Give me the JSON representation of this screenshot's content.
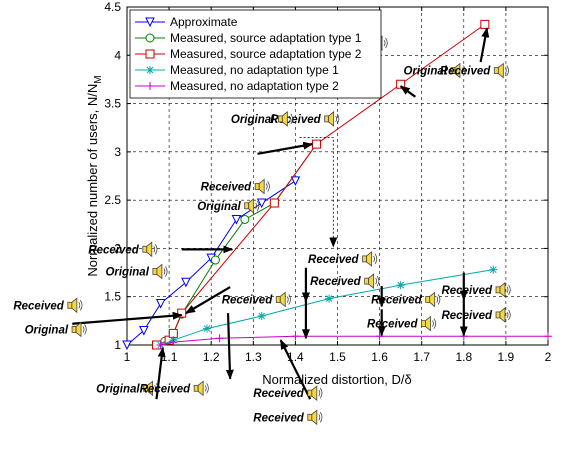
{
  "chart_data": {
    "type": "line",
    "xlabel": "Normalized distortion, D/δ",
    "ylabel": "Normalized number of users, N/N",
    "ylabel_subscript": "M",
    "xlim": [
      1,
      2
    ],
    "ylim": [
      1,
      4.5
    ],
    "x_ticks": [
      "1",
      "1.1",
      "1.2",
      "1.3",
      "1.4",
      "1.5",
      "1.6",
      "1.7",
      "1.8",
      "1.9",
      "2"
    ],
    "y_ticks": [
      "1",
      "1.5",
      "2",
      "2.5",
      "3",
      "3.5",
      "4",
      "4.5"
    ],
    "grid": true,
    "legend_position": "top-left",
    "series": [
      {
        "name": "Approximate",
        "color": "#0000ff",
        "marker": "triangle-down",
        "x": [
          1.0,
          1.04,
          1.08,
          1.14,
          1.2,
          1.26,
          1.32,
          1.4
        ],
        "y": [
          1.0,
          1.15,
          1.43,
          1.65,
          1.9,
          2.3,
          2.47,
          2.7
        ]
      },
      {
        "name": "Measured, source adaptation type 1",
        "color": "#008000",
        "marker": "circle",
        "x": [
          1.07,
          1.09,
          1.11,
          1.13,
          1.21,
          1.28,
          1.35,
          1.45
        ],
        "y": [
          1.0,
          1.04,
          1.12,
          1.32,
          1.88,
          2.3,
          2.47,
          3.08
        ]
      },
      {
        "name": "Measured, source adaptation type 2",
        "color": "#cc0000",
        "marker": "square",
        "x": [
          1.07,
          1.1,
          1.11,
          1.13,
          1.35,
          1.45,
          1.65,
          1.85
        ],
        "y": [
          1.0,
          1.05,
          1.12,
          1.33,
          2.47,
          3.08,
          3.7,
          4.32
        ]
      },
      {
        "name": "Measured, no adaptation type 1",
        "color": "#00aaaa",
        "marker": "asterisk",
        "x": [
          1.08,
          1.11,
          1.19,
          1.32,
          1.48,
          1.65,
          1.87
        ],
        "y": [
          1.0,
          1.05,
          1.17,
          1.3,
          1.48,
          1.62,
          1.78
        ]
      },
      {
        "name": "Measured, no adaptation type 2",
        "color": "#cc00cc",
        "marker": "plus",
        "x": [
          1.08,
          1.11,
          1.22,
          1.4,
          1.6,
          1.8,
          2.0
        ],
        "y": [
          1.0,
          1.03,
          1.07,
          1.09,
          1.09,
          1.09,
          1.09
        ]
      }
    ],
    "annotations": [
      {
        "text": "Received",
        "x": 1.575,
        "y": 4.085
      },
      {
        "text": "Original",
        "x": 1.535,
        "y": 3.915
      },
      {
        "text": "Original",
        "x": 1.76,
        "y": 3.8
      },
      {
        "text": "Received",
        "x": 1.863,
        "y": 3.8
      },
      {
        "text": "Received",
        "x": 1.46,
        "y": 3.3
      },
      {
        "text": "Original",
        "x": 1.35,
        "y": 3.3
      },
      {
        "text": "Received",
        "x": 1.295,
        "y": 2.6
      },
      {
        "text": "Original",
        "x": 1.27,
        "y": 2.4
      },
      {
        "text": "Received",
        "x": 1.028,
        "y": 1.95
      },
      {
        "text": "Original",
        "x": 1.052,
        "y": 1.72
      },
      {
        "text": "Received",
        "x": 1.55,
        "y": 1.85
      },
      {
        "text": "Received",
        "x": 1.555,
        "y": 1.62
      },
      {
        "text": "Received",
        "x": 1.345,
        "y": 1.43
      },
      {
        "text": "Received",
        "x": 1.7,
        "y": 1.43
      },
      {
        "text": "Received",
        "x": 1.867,
        "y": 1.53
      },
      {
        "text": "Received",
        "x": 1.69,
        "y": 1.18
      },
      {
        "text": "Received",
        "x": 1.867,
        "y": 1.27
      },
      {
        "text": "Received",
        "x": 0.85,
        "y": 1.37
      },
      {
        "text": "Original",
        "x": 0.86,
        "y": 1.12
      },
      {
        "text": "Original",
        "x": 1.03,
        "y": 0.51
      },
      {
        "text": "Received",
        "x": 1.15,
        "y": 0.51
      },
      {
        "text": "Received",
        "x": 1.42,
        "y": 0.46
      },
      {
        "text": "Received",
        "x": 1.42,
        "y": 0.21
      }
    ],
    "arrows": [
      {
        "from": [
          1.84,
          3.93
        ],
        "to": [
          1.855,
          4.28
        ]
      },
      {
        "from": [
          1.685,
          3.57
        ],
        "to": [
          1.65,
          3.68
        ]
      },
      {
        "from": [
          1.31,
          2.98
        ],
        "to": [
          1.44,
          3.08
        ]
      },
      {
        "from": [
          1.13,
          1.99
        ],
        "to": [
          1.25,
          1.99
        ]
      },
      {
        "from": [
          1.245,
          1.6
        ],
        "to": [
          1.14,
          1.33
        ]
      },
      {
        "from": [
          0.87,
          1.22
        ],
        "to": [
          1.13,
          1.31
        ]
      },
      {
        "from": [
          1.435,
          0.44
        ],
        "to": [
          1.365,
          1.05
        ]
      },
      {
        "from": [
          1.07,
          0.44
        ],
        "to": [
          1.085,
          0.97
        ]
      },
      {
        "from": [
          1.24,
          1.33
        ],
        "to": [
          1.245,
          0.65
        ]
      },
      {
        "from": [
          1.425,
          1.8
        ],
        "to": [
          1.425,
          1.45
        ]
      },
      {
        "from": [
          1.425,
          1.49
        ],
        "to": [
          1.425,
          1.07
        ]
      },
      {
        "from": [
          1.605,
          1.61
        ],
        "to": [
          1.605,
          1.4
        ]
      },
      {
        "from": [
          1.605,
          1.37
        ],
        "to": [
          1.605,
          1.1
        ]
      },
      {
        "from": [
          1.8,
          1.75
        ],
        "to": [
          1.8,
          1.47
        ]
      },
      {
        "from": [
          1.8,
          1.47
        ],
        "to": [
          1.8,
          1.1
        ]
      }
    ],
    "dashed_connector": [
      [
        1.41,
        3.15
      ],
      [
        1.49,
        3.15
      ],
      [
        1.49,
        2.02
      ]
    ]
  },
  "colors": {
    "axis": "#000000",
    "grid": "#000000",
    "speaker_fill": "#f5d742",
    "speaker_stroke": "#444444",
    "arrow": "#000000"
  },
  "icons": {
    "annotation_icon": "speaker-icon"
  }
}
